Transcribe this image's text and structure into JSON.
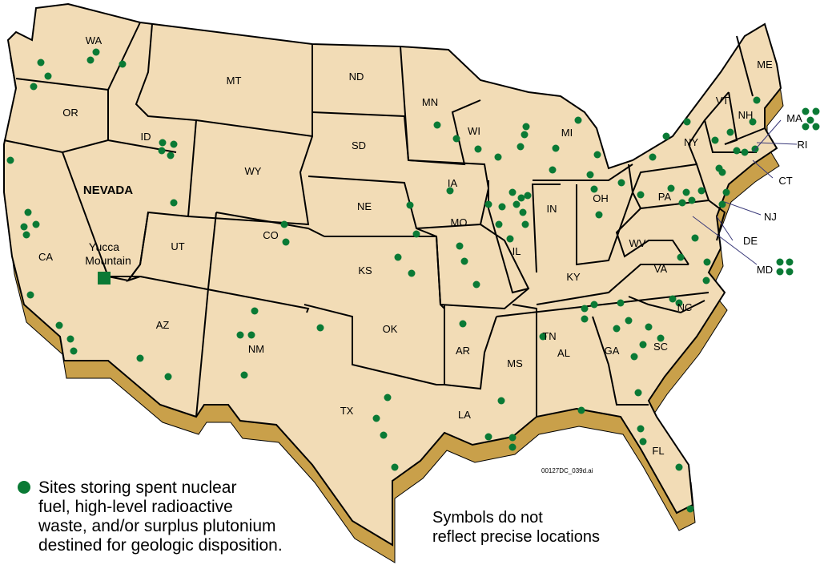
{
  "colors": {
    "land": "#f2dcb6",
    "extrusion": "#c9a04a",
    "border": "#000000",
    "site": "#0a7a35"
  },
  "states": {
    "WA": "WA",
    "OR": "OR",
    "CA": "CA",
    "NEVADA": "NEVADA",
    "ID": "ID",
    "MT": "MT",
    "WY": "WY",
    "UT": "UT",
    "CO": "CO",
    "AZ": "AZ",
    "NM": "NM",
    "ND": "ND",
    "SD": "SD",
    "NE": "NE",
    "KS": "KS",
    "OK": "OK",
    "TX": "TX",
    "MN": "MN",
    "IA": "IA",
    "MO": "MO",
    "AR": "AR",
    "LA": "LA",
    "WI": "WI",
    "IL": "IL",
    "MI": "MI",
    "IN": "IN",
    "OH": "OH",
    "KY": "KY",
    "TN": "TN",
    "MS": "MS",
    "AL": "AL",
    "GA": "GA",
    "FL": "FL",
    "SC": "SC",
    "NC": "NC",
    "VA": "VA",
    "WV": "WV",
    "PA": "PA",
    "NY": "NY",
    "VT": "VT",
    "NH": "NH",
    "ME": "ME",
    "MA": "MA",
    "RI": "RI",
    "CT": "CT",
    "NJ": "NJ",
    "DE": "DE",
    "MD": "MD"
  },
  "yucca": {
    "line1": "Yucca",
    "line2": "Mountain",
    "marker": "square"
  },
  "legend": {
    "icon": "green-dot",
    "text": "Sites storing spent nuclear\nfuel, high-level radioactive\nwaste, and/or surplus plutonium\ndestined for geologic disposition."
  },
  "note": "Symbols do not\nreflect precise locations",
  "file_id": "00127DC_039d.ai"
}
